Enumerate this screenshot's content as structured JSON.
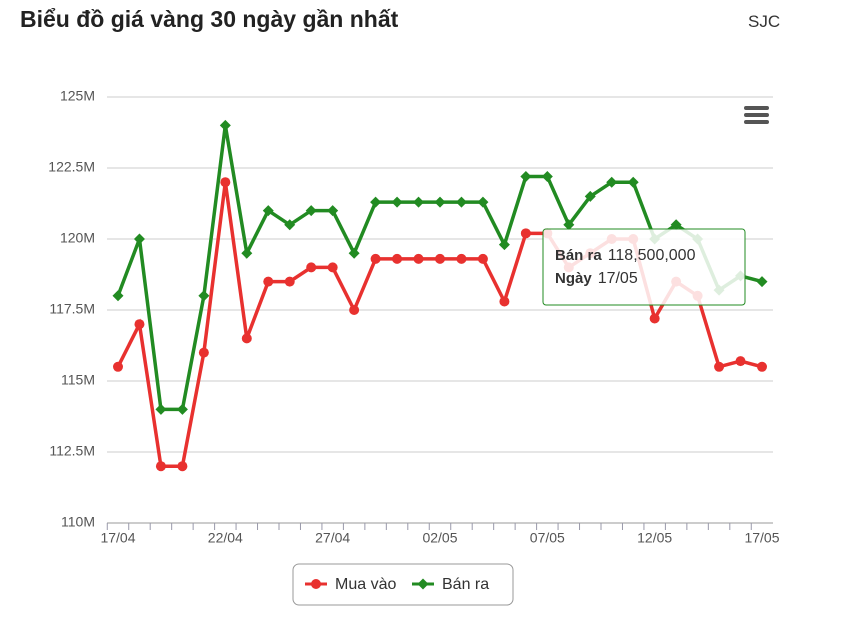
{
  "header": {
    "title": "Biểu đồ giá vàng 30 ngày gần nhất",
    "source": "SJC"
  },
  "chart_data": {
    "type": "line",
    "categories": [
      "17/04",
      null,
      null,
      null,
      null,
      "22/04",
      null,
      null,
      null,
      null,
      "27/04",
      null,
      null,
      null,
      null,
      "02/05",
      null,
      null,
      null,
      null,
      "07/05",
      null,
      null,
      null,
      null,
      "12/05",
      null,
      null,
      null,
      null,
      "17/05"
    ],
    "series": [
      {
        "name": "Mua vào",
        "color": "#e8312f",
        "values": [
          115500000,
          117000000,
          112000000,
          112000000,
          116000000,
          122000000,
          116500000,
          118500000,
          118500000,
          119000000,
          119000000,
          117500000,
          119300000,
          119300000,
          119300000,
          119300000,
          119300000,
          119300000,
          117800000,
          120200000,
          120200000,
          119000000,
          119500000,
          120000000,
          120000000,
          117200000,
          118500000,
          118000000,
          115500000,
          115700000,
          115500000
        ]
      },
      {
        "name": "Bán ra",
        "color": "#228b22",
        "values": [
          118000000,
          120000000,
          114000000,
          114000000,
          118000000,
          124000000,
          119500000,
          121000000,
          120500000,
          121000000,
          121000000,
          119500000,
          121300000,
          121300000,
          121300000,
          121300000,
          121300000,
          121300000,
          119800000,
          122200000,
          122200000,
          120500000,
          121500000,
          122000000,
          122000000,
          120000000,
          120500000,
          120000000,
          118200000,
          118700000,
          118500000
        ]
      }
    ],
    "ylim": [
      110000000,
      125000000
    ],
    "yticks": [
      {
        "value": 110000000,
        "label": "110M"
      },
      {
        "value": 112500000,
        "label": "112.5M"
      },
      {
        "value": 115000000,
        "label": "115M"
      },
      {
        "value": 117500000,
        "label": "117.5M"
      },
      {
        "value": 120000000,
        "label": "120M"
      },
      {
        "value": 122500000,
        "label": "122.5M"
      },
      {
        "value": 125000000,
        "label": "125M"
      }
    ],
    "grid": true,
    "tooltip": {
      "value_label": "118,500,000",
      "date_label": "Ngày"
    }
  }
}
